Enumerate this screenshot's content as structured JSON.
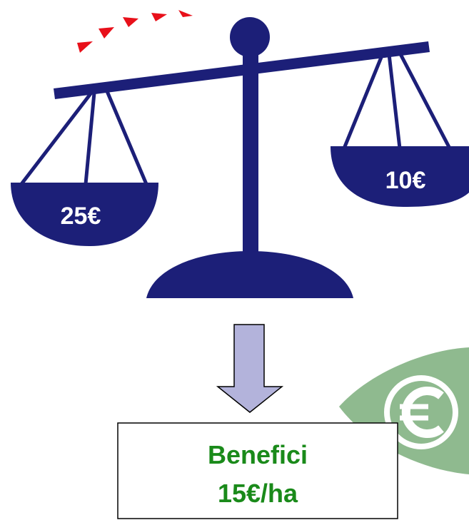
{
  "pans": {
    "left": "25€",
    "right": "10€"
  },
  "result": {
    "label": "Benefici",
    "value": "15€/ha"
  }
}
